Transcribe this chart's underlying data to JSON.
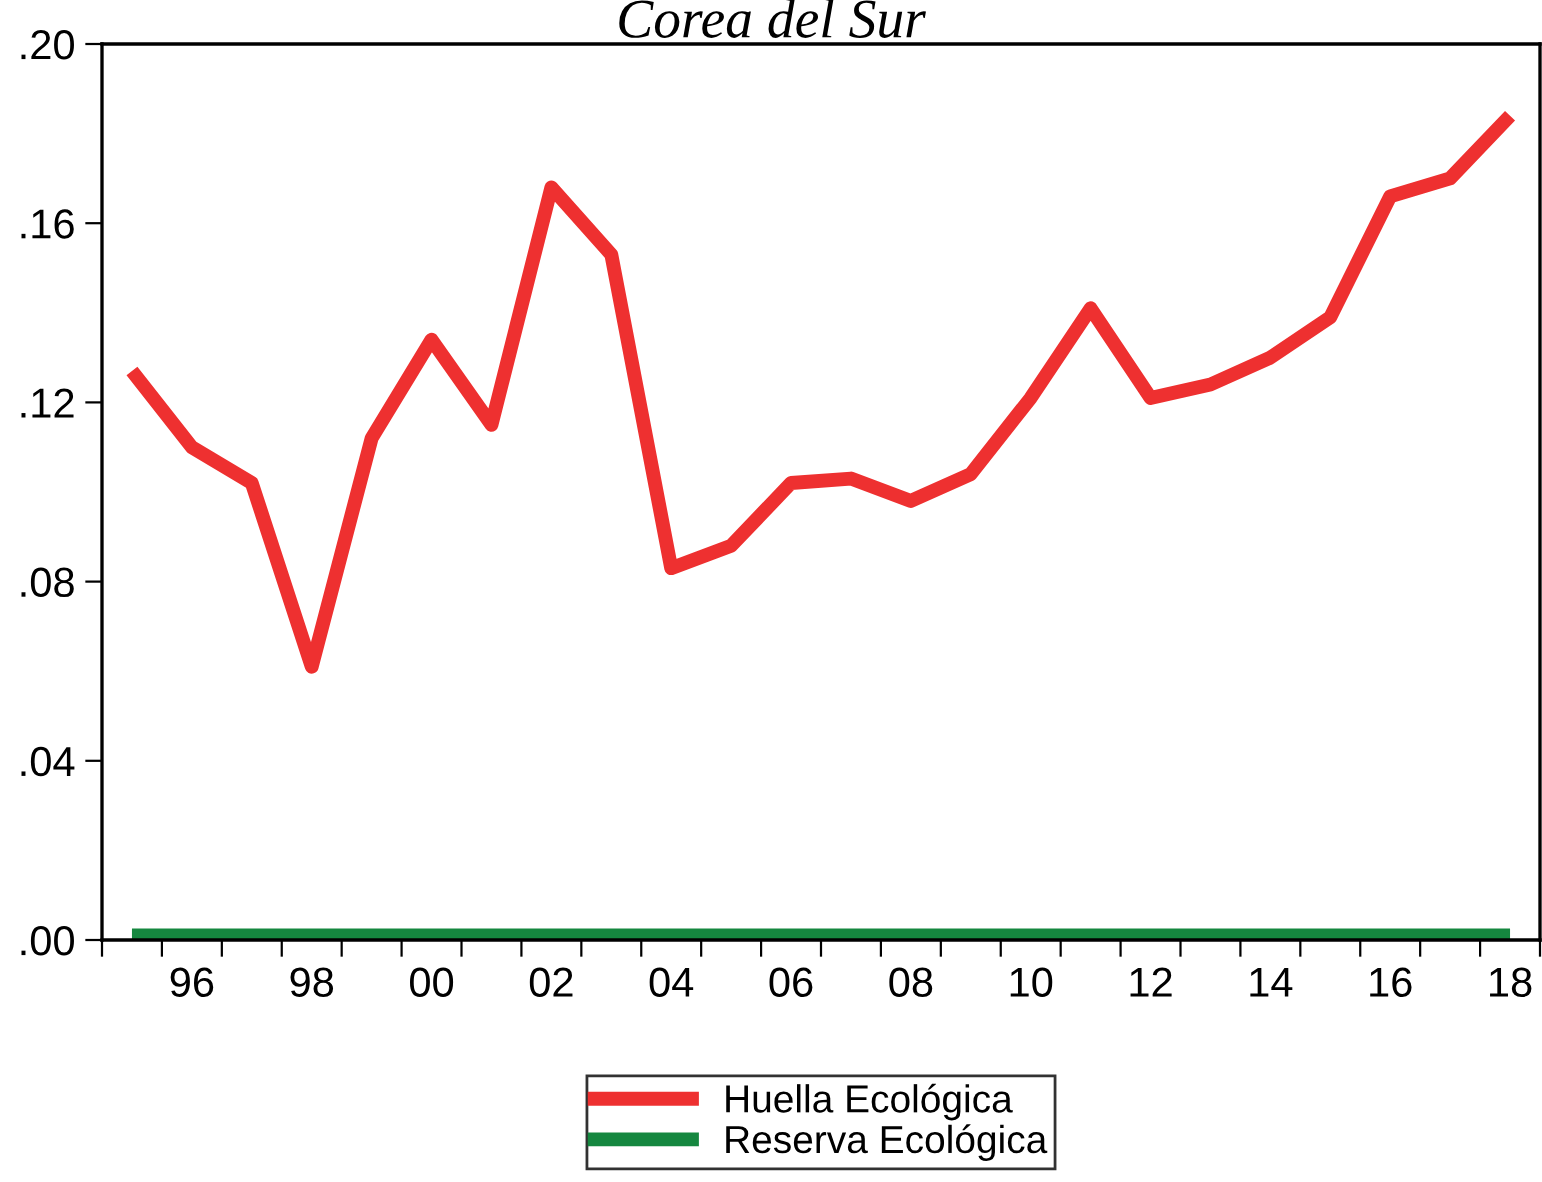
{
  "chart_data": {
    "type": "line",
    "title": "Corea del Sur",
    "x": [
      1995,
      1996,
      1997,
      1998,
      1999,
      2000,
      2001,
      2002,
      2003,
      2004,
      2005,
      2006,
      2007,
      2008,
      2009,
      2010,
      2011,
      2012,
      2013,
      2014,
      2015,
      2016,
      2017,
      2018
    ],
    "series": [
      {
        "name": "Huella Ecológica",
        "color": "#ee3030",
        "values": [
          0.127,
          0.11,
          0.102,
          0.061,
          0.112,
          0.134,
          0.115,
          0.168,
          0.153,
          0.083,
          0.088,
          0.102,
          0.103,
          0.098,
          0.104,
          0.121,
          0.141,
          0.121,
          0.124,
          0.13,
          0.139,
          0.166,
          0.17,
          0.184
        ]
      },
      {
        "name": "Reserva Ecológica",
        "color": "#15873f",
        "values": [
          0.001,
          0.001,
          0.001,
          0.001,
          0.001,
          0.001,
          0.001,
          0.001,
          0.001,
          0.001,
          0.001,
          0.001,
          0.001,
          0.001,
          0.001,
          0.001,
          0.001,
          0.001,
          0.001,
          0.001,
          0.001,
          0.001,
          0.001,
          0.001
        ]
      }
    ],
    "xlim": [
      1994.5,
      2018.5
    ],
    "xticks": [
      {
        "value": 1994.5,
        "label": null
      },
      {
        "value": 1995.5,
        "label": null
      },
      {
        "value": 1996,
        "label": "96"
      },
      {
        "value": 1996.5,
        "label": null
      },
      {
        "value": 1997.5,
        "label": null
      },
      {
        "value": 1998,
        "label": "98"
      },
      {
        "value": 1998.5,
        "label": null
      },
      {
        "value": 1999.5,
        "label": null
      },
      {
        "value": 2000,
        "label": "00"
      },
      {
        "value": 2000.5,
        "label": null
      },
      {
        "value": 2001.5,
        "label": null
      },
      {
        "value": 2002,
        "label": "02"
      },
      {
        "value": 2002.5,
        "label": null
      },
      {
        "value": 2003.5,
        "label": null
      },
      {
        "value": 2004,
        "label": "04"
      },
      {
        "value": 2004.5,
        "label": null
      },
      {
        "value": 2005.5,
        "label": null
      },
      {
        "value": 2006,
        "label": "06"
      },
      {
        "value": 2006.5,
        "label": null
      },
      {
        "value": 2007.5,
        "label": null
      },
      {
        "value": 2008,
        "label": "08"
      },
      {
        "value": 2008.5,
        "label": null
      },
      {
        "value": 2009.5,
        "label": null
      },
      {
        "value": 2010,
        "label": "10"
      },
      {
        "value": 2010.5,
        "label": null
      },
      {
        "value": 2011.5,
        "label": null
      },
      {
        "value": 2012,
        "label": "12"
      },
      {
        "value": 2012.5,
        "label": null
      },
      {
        "value": 2013.5,
        "label": null
      },
      {
        "value": 2014,
        "label": "14"
      },
      {
        "value": 2014.5,
        "label": null
      },
      {
        "value": 2015.5,
        "label": null
      },
      {
        "value": 2016,
        "label": "16"
      },
      {
        "value": 2016.5,
        "label": null
      },
      {
        "value": 2017.5,
        "label": null
      },
      {
        "value": 2018,
        "label": "18"
      },
      {
        "value": 2018.5,
        "label": null
      }
    ],
    "ylim": [
      0,
      0.2
    ],
    "yticks": [
      {
        "value": 0,
        "label": ".00"
      },
      {
        "value": 0.04,
        "label": ".04"
      },
      {
        "value": 0.08,
        "label": ".08"
      },
      {
        "value": 0.12,
        "label": ".12"
      },
      {
        "value": 0.16,
        "label": ".16"
      },
      {
        "value": 0.2,
        "label": ".20"
      }
    ],
    "grid": false,
    "legend": "bottom",
    "marker": "none",
    "line_style": "solid"
  }
}
